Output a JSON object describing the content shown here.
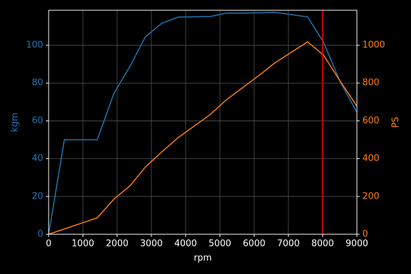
{
  "chart_data": {
    "type": "line",
    "x": [
      0,
      460,
      1420,
      1900,
      2380,
      2820,
      3300,
      3780,
      4720,
      5180,
      5660,
      6140,
      6600,
      7560,
      8020,
      8520,
      9000
    ],
    "series": [
      {
        "name": "kgm",
        "color": "#1f77b4",
        "axis": "y",
        "values": [
          0,
          50,
          50,
          74.3,
          89,
          104.3,
          111.6,
          114.9,
          115.2,
          117,
          117,
          117.2,
          117.4,
          115,
          101.8,
          80.4,
          64.5
        ]
      },
      {
        "name": "PS",
        "color": "#ff7f0e",
        "axis": "y2",
        "values": [
          0,
          28,
          87,
          185,
          257,
          355,
          435,
          511,
          634,
          710,
          775,
          840,
          906,
          1018,
          949,
          808,
          678
        ]
      }
    ],
    "xlabel": "rpm",
    "ylabel": "kgm",
    "y2label": "PS",
    "xlim": [
      0,
      9000
    ],
    "xticks": [
      0,
      1000,
      2000,
      3000,
      4000,
      5000,
      6000,
      7000,
      8000,
      9000
    ],
    "ylim": [
      0,
      118.5
    ],
    "yticks": [
      0,
      20,
      40,
      60,
      80,
      100
    ],
    "y2lim": [
      0,
      1185
    ],
    "y2ticks": [
      0,
      200,
      400,
      600,
      800,
      1000
    ],
    "grid": true,
    "vline": {
      "x": 8000,
      "color": "#ff0000"
    }
  }
}
